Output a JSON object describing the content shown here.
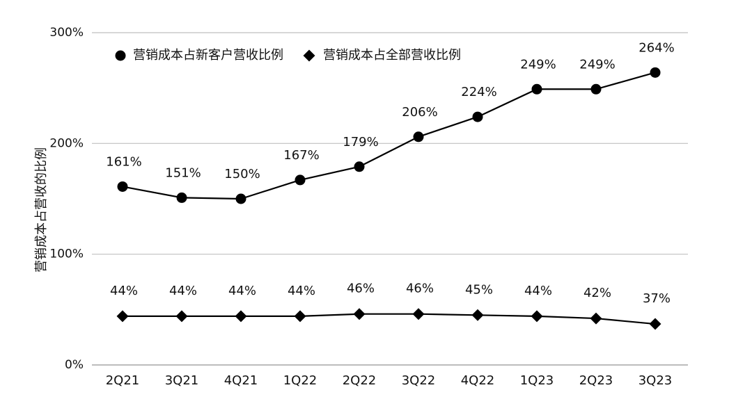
{
  "chart_data": {
    "type": "line",
    "title": "",
    "xlabel": "",
    "ylabel": "营销成本占营收的比例",
    "ylim": [
      0,
      300
    ],
    "yticks": [
      "0%",
      "100%",
      "200%",
      "300%"
    ],
    "grid": true,
    "legend_position": "top-left",
    "categories": [
      "2Q21",
      "3Q21",
      "4Q21",
      "1Q22",
      "2Q22",
      "3Q22",
      "4Q22",
      "1Q23",
      "2Q23",
      "3Q23"
    ],
    "series": [
      {
        "name": "营销成本占新客户营收比例",
        "marker": "circle",
        "values": [
          161,
          151,
          150,
          167,
          179,
          206,
          224,
          249,
          249,
          264
        ],
        "labels": [
          "161%",
          "151%",
          "150%",
          "167%",
          "179%",
          "206%",
          "224%",
          "249%",
          "249%",
          "264%"
        ]
      },
      {
        "name": "营销成本占全部营收比例",
        "marker": "diamond",
        "values": [
          44,
          44,
          44,
          44,
          46,
          46,
          45,
          44,
          42,
          37
        ],
        "labels": [
          "44%",
          "44%",
          "44%",
          "44%",
          "46%",
          "46%",
          "45%",
          "44%",
          "42%",
          "37%"
        ]
      }
    ],
    "colors": {
      "line": "#000000",
      "grid": "#bfbfbf",
      "axis": "#a6a6a6",
      "text": "#111111"
    }
  }
}
